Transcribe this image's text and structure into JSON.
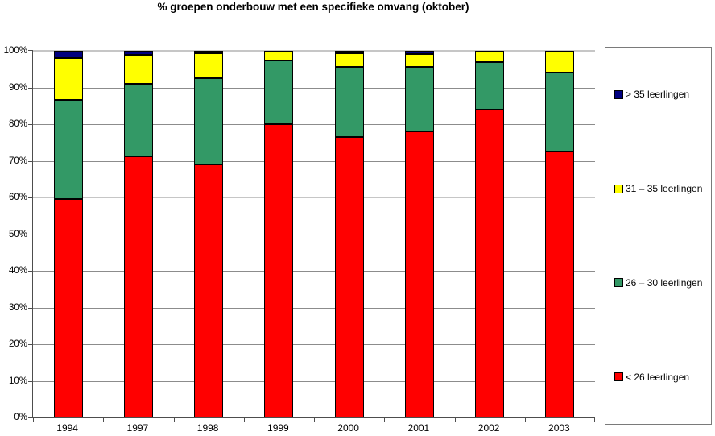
{
  "chart_data": {
    "type": "bar",
    "stacked": true,
    "percent_stacked": true,
    "title": "% groepen onderbouw met een specifieke omvang (oktober)",
    "categories": [
      "1994",
      "1997",
      "1998",
      "1999",
      "2000",
      "2001",
      "2002",
      "2003"
    ],
    "series": [
      {
        "name": "< 26 leerlingen",
        "color": "#ff0000",
        "values": [
          59.5,
          71.3,
          69.0,
          80.0,
          76.4,
          78.0,
          84.0,
          72.5
        ]
      },
      {
        "name": "26 – 30 leerlingen",
        "color": "#339966",
        "values": [
          27.0,
          19.7,
          23.5,
          17.3,
          19.3,
          17.7,
          13.0,
          21.5
        ]
      },
      {
        "name": "31 – 35 leerlingen",
        "color": "#ffff00",
        "values": [
          11.5,
          8.0,
          6.8,
          2.7,
          3.6,
          3.5,
          3.0,
          6.0
        ]
      },
      {
        "name": "> 35 leerlingen",
        "color": "#000080",
        "values": [
          2.0,
          1.0,
          0.7,
          0.0,
          0.7,
          0.8,
          0.0,
          0.0
        ]
      }
    ],
    "xlabel": "",
    "ylabel": "",
    "ylim": [
      0,
      100
    ],
    "ytick_step": 10,
    "ytick_labels": [
      "0%",
      "10%",
      "20%",
      "30%",
      "40%",
      "50%",
      "60%",
      "70%",
      "80%",
      "90%",
      "100%"
    ],
    "grid": true,
    "legend_position": "right",
    "legend_order_top_to_bottom": [
      "> 35 leerlingen",
      "31 – 35 leerlingen",
      "26 – 30 leerlingen",
      "< 26 leerlingen"
    ]
  }
}
